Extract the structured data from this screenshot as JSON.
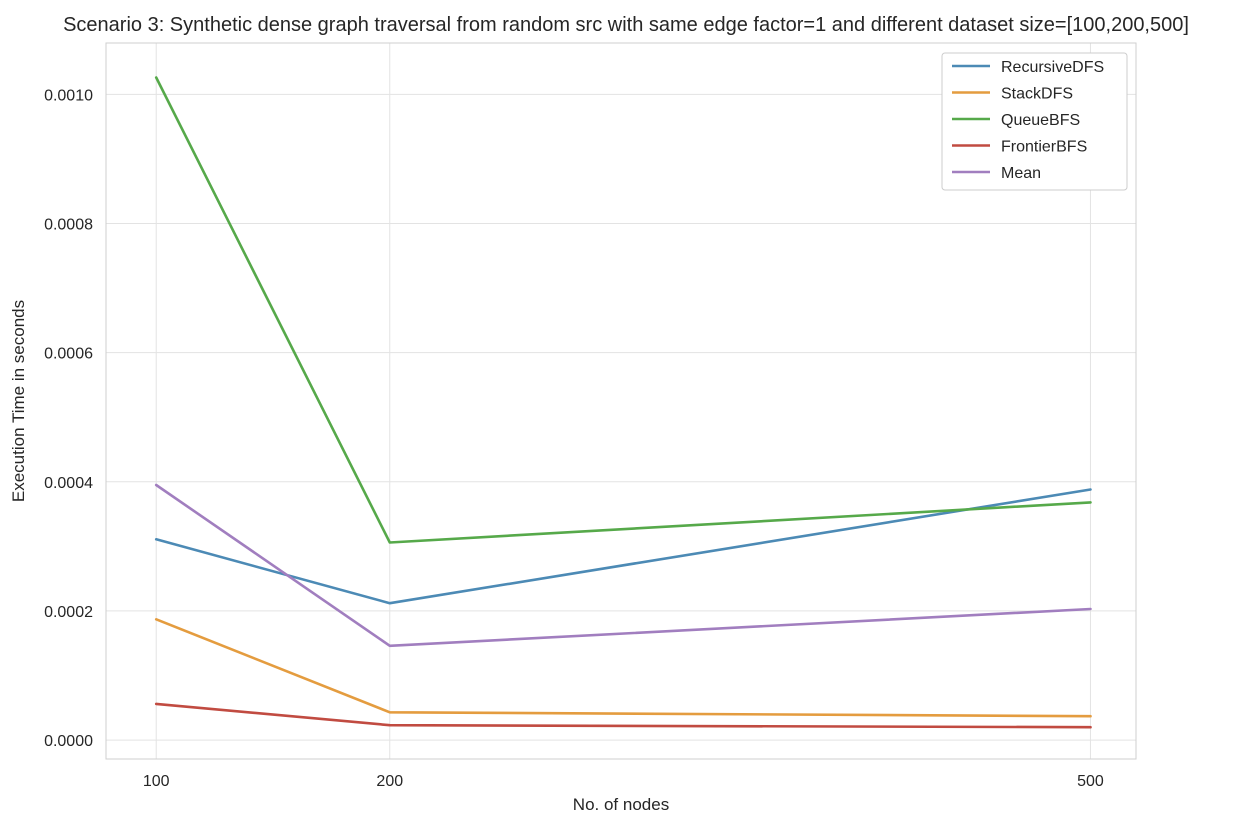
{
  "chart_data": {
    "type": "line",
    "title": "Scenario 3: Synthetic dense graph traversal from random src with same edge factor=1 and different dataset size=[100,200,500]",
    "xlabel": "No. of nodes",
    "ylabel": "Execution Time in seconds",
    "x": [
      100,
      200,
      500
    ],
    "x_ticks": [
      "100",
      "200",
      "500"
    ],
    "y_ticks": [
      "0.0000",
      "0.0002",
      "0.0004",
      "0.0006",
      "0.0008",
      "0.0010"
    ],
    "xlim": [
      78.5,
      519.5
    ],
    "ylim": [
      -2.93e-05,
      0.0010795
    ],
    "grid": true,
    "legend_position": "top-right",
    "series": [
      {
        "name": "RecursiveDFS",
        "color": "#4c8ab5",
        "values": [
          0.000311,
          0.000212,
          0.000388
        ]
      },
      {
        "name": "StackDFS",
        "color": "#e49c3f",
        "values": [
          0.000187,
          4.3e-05,
          3.7e-05
        ]
      },
      {
        "name": "QueueBFS",
        "color": "#56a94a",
        "values": [
          0.001026,
          0.000306,
          0.000368
        ]
      },
      {
        "name": "FrontierBFS",
        "color": "#c14b41",
        "values": [
          5.6e-05,
          2.3e-05,
          2e-05
        ]
      },
      {
        "name": "Mean",
        "color": "#a17ebf",
        "values": [
          0.000395,
          0.000146,
          0.000203
        ]
      }
    ]
  }
}
